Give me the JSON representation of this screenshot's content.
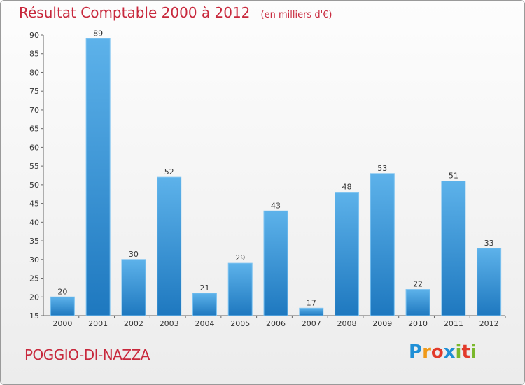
{
  "page": {
    "title": "Résultat Comptable 2000 à 2012",
    "subtitle": "(en milliers d'€)",
    "town": "POGGIO-DI-NAZZA",
    "logo": {
      "letters": [
        "P",
        "r",
        "o",
        "x",
        "i",
        "t",
        "i"
      ],
      "colors": [
        "#1f8fd6",
        "#f09a1a",
        "#e23a2a",
        "#1f8fd6",
        "#7ab82c",
        "#e23a2a",
        "#7ab82c"
      ]
    }
  },
  "chart_data": {
    "type": "bar",
    "categories": [
      "2000",
      "2001",
      "2002",
      "2003",
      "2004",
      "2005",
      "2006",
      "2007",
      "2008",
      "2009",
      "2010",
      "2011",
      "2012"
    ],
    "values": [
      20,
      89,
      30,
      52,
      21,
      29,
      43,
      17,
      48,
      53,
      22,
      51,
      33
    ],
    "yticks": [
      15,
      20,
      25,
      30,
      35,
      40,
      45,
      50,
      55,
      60,
      65,
      70,
      75,
      80,
      85,
      90
    ],
    "ylim": [
      15,
      90
    ],
    "bar_color": "#2f8bd0",
    "grid": false
  }
}
